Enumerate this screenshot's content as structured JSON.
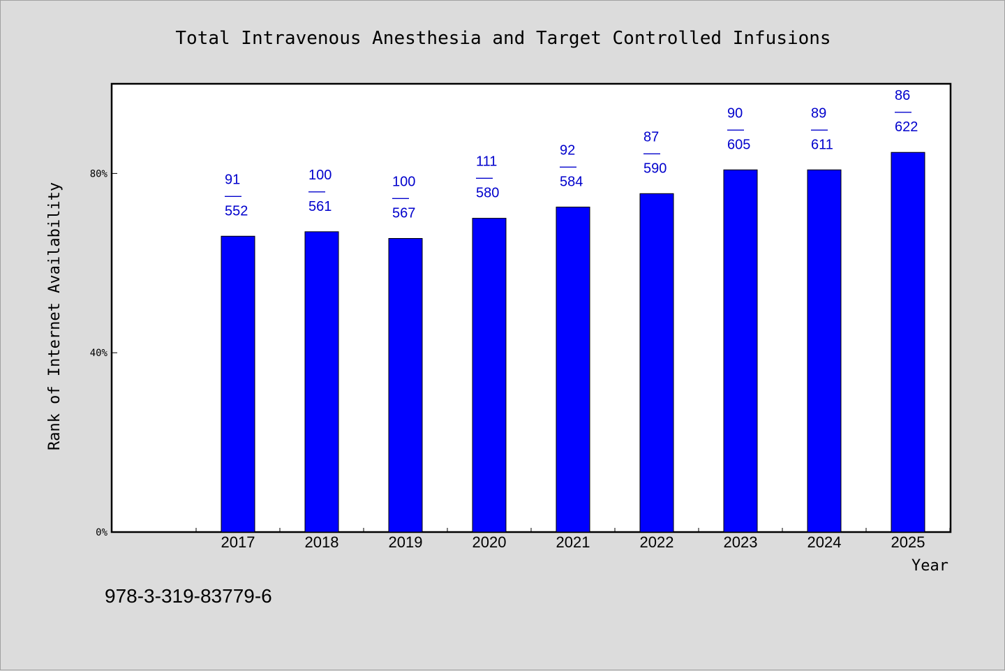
{
  "chart_data": {
    "type": "bar",
    "title": "Total Intravenous Anesthesia and Target Controlled Infusions",
    "xlabel": "Year",
    "ylabel": "Rank of Internet Availability",
    "categories": [
      "2017",
      "2018",
      "2019",
      "2020",
      "2021",
      "2022",
      "2023",
      "2024",
      "2025"
    ],
    "series": [
      {
        "values": [
          0.66,
          0.67,
          0.655,
          0.7,
          0.725,
          0.755,
          0.808,
          0.808,
          0.847
        ]
      }
    ],
    "bar_labels": [
      {
        "rank": "91",
        "sep": "——",
        "total": "552"
      },
      {
        "rank": "100",
        "sep": "——",
        "total": "561"
      },
      {
        "rank": "100",
        "sep": "——",
        "total": "567"
      },
      {
        "rank": "111",
        "sep": "——",
        "total": "580"
      },
      {
        "rank": "92",
        "sep": "——",
        "total": "584"
      },
      {
        "rank": "87",
        "sep": "——",
        "total": "590"
      },
      {
        "rank": "90",
        "sep": "——",
        "total": "605"
      },
      {
        "rank": "89",
        "sep": "——",
        "total": "611"
      },
      {
        "rank": "86",
        "sep": "——",
        "total": "622"
      }
    ],
    "yticks": [
      {
        "value": 0,
        "label": "0%"
      },
      {
        "value": 0.4,
        "label": "40%"
      },
      {
        "value": 0.8,
        "label": "80%"
      }
    ],
    "ylim": [
      0,
      1.0
    ],
    "grid": false,
    "legend": "none",
    "colors": {
      "bar": "#0000ff",
      "label": "#0000cc",
      "plot_bg": "#ffffff",
      "page_bg": "#dcdcdc"
    }
  },
  "footer": {
    "isbn": "978-3-319-83779-6"
  }
}
